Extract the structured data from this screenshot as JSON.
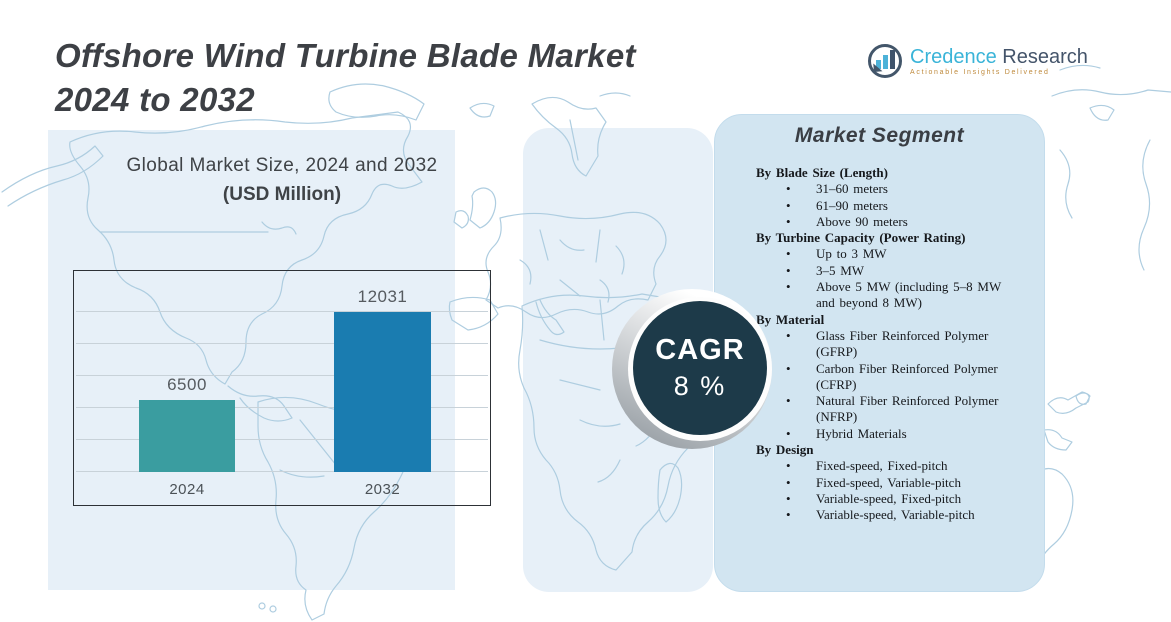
{
  "title": {
    "line1": "Offshore Wind Turbine Blade Market",
    "line2": "2024 to 2032"
  },
  "logo": {
    "brand_first": "Credence",
    "brand_second": "Research",
    "tagline": "Actionable Insights Delivered",
    "icon": "bar-chart-bubble-icon",
    "brand_color": "#3ab4d8",
    "secondary_color": "#44546a",
    "tagline_color": "#bf8a3c"
  },
  "chart": {
    "title_line1": "Global Market Size, 2024 and 2032",
    "title_line2": "(USD Million)"
  },
  "chart_data": {
    "type": "bar",
    "title": "Global Market Size, 2024 and 2032 (USD Million)",
    "categories": [
      "2024",
      "2032"
    ],
    "values": [
      6500,
      12031
    ],
    "value_labels": [
      "6500",
      "12031"
    ],
    "bar_colors": [
      "#3a9da0",
      "#1a7cb0"
    ],
    "xlabel": "",
    "ylabel": "",
    "ylim": [
      2000,
      14000
    ],
    "gridlines": [
      2000,
      4000,
      6000,
      8000,
      10000,
      12000
    ],
    "grid": true,
    "legend": false
  },
  "cagr": {
    "label": "CAGR",
    "value": "8 %",
    "circle_color": "#1d3a49"
  },
  "segment_panel": {
    "title": "Market Segment",
    "background_color": "#d2e5f1",
    "groups": [
      {
        "heading": "By Blade Size (Length)",
        "items": [
          "31–60 meters",
          "61–90 meters",
          "Above 90 meters"
        ]
      },
      {
        "heading": "By Turbine Capacity (Power Rating)",
        "items": [
          "Up to 3 MW",
          "3–5 MW",
          "Above 5 MW (including 5–8 MW and beyond 8 MW)"
        ]
      },
      {
        "heading": "By Material",
        "items": [
          "Glass Fiber Reinforced Polymer (GFRP)",
          "Carbon Fiber Reinforced Polymer (CFRP)",
          "Natural Fiber Reinforced Polymer (NFRP)",
          "Hybrid Materials"
        ]
      },
      {
        "heading": "By Design",
        "items": [
          "Fixed-speed, Fixed-pitch",
          "Fixed-speed, Variable-pitch",
          "Variable-speed, Fixed-pitch",
          "Variable-speed, Variable-pitch"
        ]
      }
    ]
  }
}
